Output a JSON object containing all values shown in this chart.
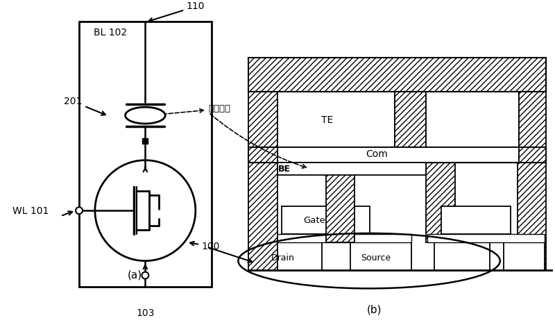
{
  "bg_color": "#ffffff",
  "fig_width": 8.0,
  "fig_height": 4.68,
  "labels": {
    "BL_102": "BL 102",
    "WL_101": "WL 101",
    "label_201": "201",
    "label_110": "110",
    "label_103": "103",
    "label_100": "100",
    "cun_chu": "存储电阻",
    "label_a": "(a)",
    "label_b": "(b)",
    "TE": "TE",
    "BE": "BE",
    "Com": "Com",
    "Gate": "Gate",
    "Drain": "Drain",
    "Source": "Source"
  }
}
